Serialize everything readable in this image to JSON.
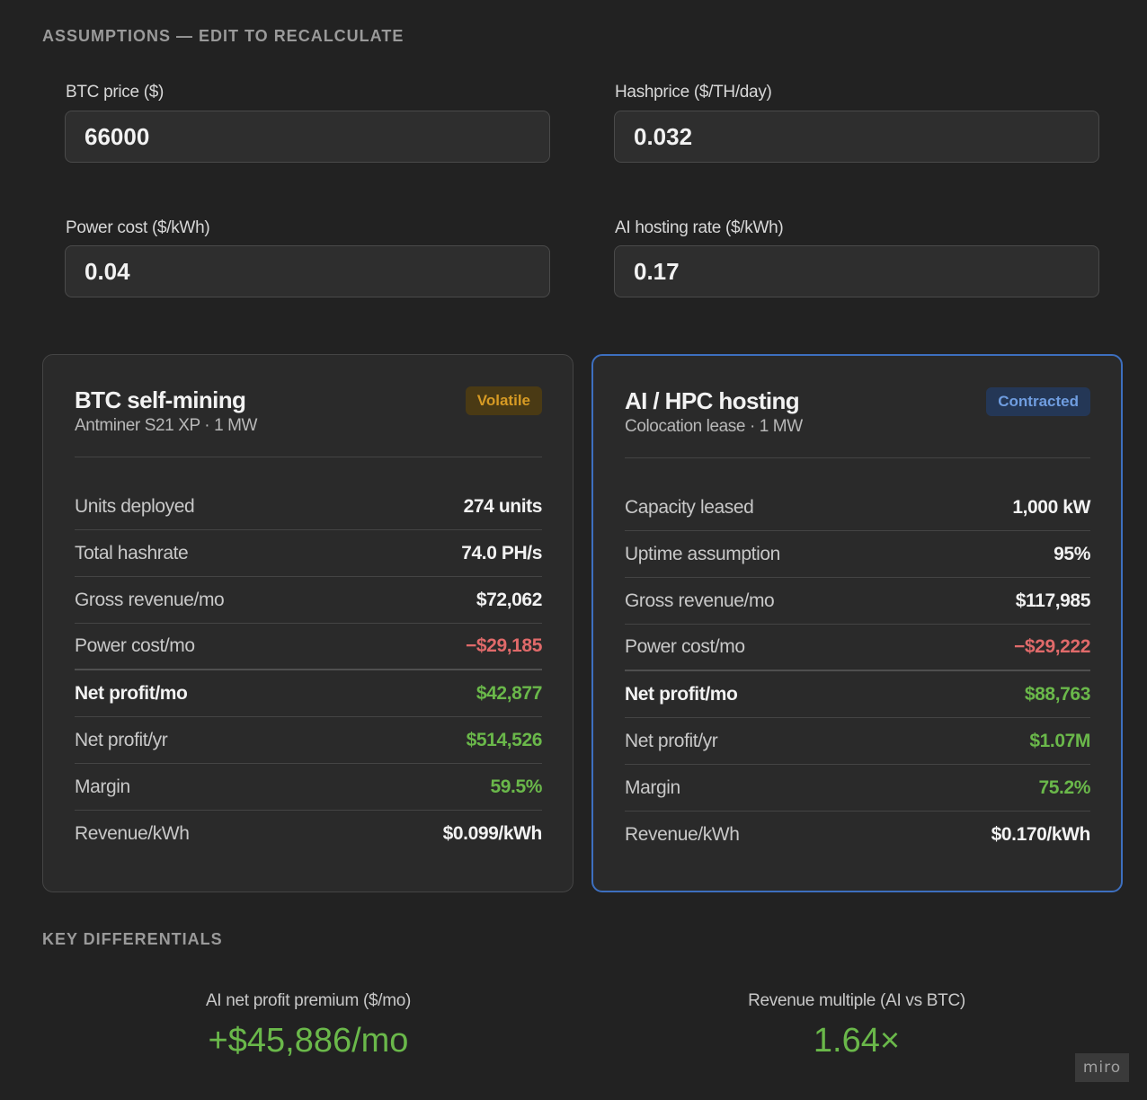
{
  "assumptions": {
    "heading": "ASSUMPTIONS — EDIT TO RECALCULATE",
    "btc_price": {
      "label": "BTC price ($)",
      "value": "66000"
    },
    "hashprice": {
      "label": "Hashprice ($/TH/day)",
      "value": "0.032"
    },
    "power_cost": {
      "label": "Power cost ($/kWh)",
      "value": "0.04"
    },
    "ai_rate": {
      "label": "AI hosting rate ($/kWh)",
      "value": "0.17"
    }
  },
  "btc_card": {
    "title": "BTC self-mining",
    "subtitle": "Antminer S21 XP · 1 MW",
    "badge": "Volatile",
    "badge_color": "#d69a24",
    "rows": [
      {
        "label": "Units deployed",
        "value": "274 units"
      },
      {
        "label": "Total hashrate",
        "value": "74.0 PH/s"
      },
      {
        "label": "Gross revenue/mo",
        "value": "$72,062"
      },
      {
        "label": "Power cost/mo",
        "value": "−$29,185"
      },
      {
        "label": "Net profit/mo",
        "value": "$42,877"
      },
      {
        "label": "Net profit/yr",
        "value": "$514,526"
      },
      {
        "label": "Margin",
        "value": "59.5%"
      },
      {
        "label": "Revenue/kWh",
        "value": "$0.099/kWh"
      }
    ]
  },
  "ai_card": {
    "title": "AI / HPC hosting",
    "subtitle": "Colocation lease · 1 MW",
    "badge": "Contracted",
    "badge_color": "#6f9de0",
    "rows": [
      {
        "label": "Capacity leased",
        "value": "1,000 kW"
      },
      {
        "label": "Uptime assumption",
        "value": "95%"
      },
      {
        "label": "Gross revenue/mo",
        "value": "$117,985"
      },
      {
        "label": "Power cost/mo",
        "value": "−$29,222"
      },
      {
        "label": "Net profit/mo",
        "value": "$88,763"
      },
      {
        "label": "Net profit/yr",
        "value": "$1.07M"
      },
      {
        "label": "Margin",
        "value": "75.2%"
      },
      {
        "label": "Revenue/kWh",
        "value": "$0.170/kWh"
      }
    ]
  },
  "differentials": {
    "heading": "KEY DIFFERENTIALS",
    "premium": {
      "label": "AI net profit premium ($/mo)",
      "value": "+$45,886/mo"
    },
    "multiple": {
      "label": "Revenue multiple (AI vs BTC)",
      "value": "1.64×"
    }
  },
  "watermark": "miro",
  "colors": {
    "positive": "#6ab84a",
    "negative": "#e06a6a",
    "highlight_border": "#3d6fbf"
  }
}
